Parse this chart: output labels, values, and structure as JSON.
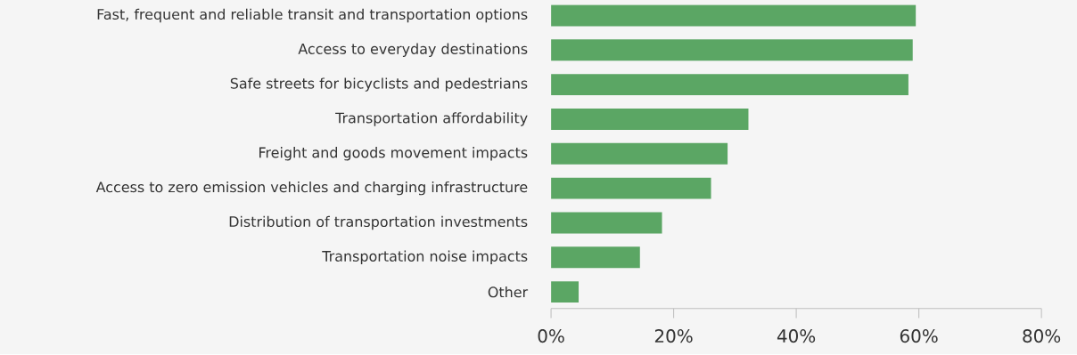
{
  "chart_data": {
    "type": "bar",
    "orientation": "horizontal",
    "categories": [
      "Fast, frequent and reliable transit and transportation options",
      "Access to everyday destinations",
      "Safe streets for bicyclists and pedestrians",
      "Transportation affordability",
      "Freight and goods movement impacts",
      "Access to zero emission vehicles and charging infrastructure",
      "Distribution of transportation investments",
      "Transportation noise impacts",
      "Other"
    ],
    "values": [
      59.5,
      59,
      58.3,
      32.2,
      28.8,
      26.1,
      18.1,
      14.5,
      4.5
    ],
    "color": "#5ba664",
    "xlim": [
      0,
      80
    ],
    "xticks": [
      {
        "value": 0,
        "label": "0%"
      },
      {
        "value": 20,
        "label": "20%"
      },
      {
        "value": 40,
        "label": "40%"
      },
      {
        "value": 60,
        "label": "60%"
      },
      {
        "value": 80,
        "label": "80%"
      }
    ]
  }
}
